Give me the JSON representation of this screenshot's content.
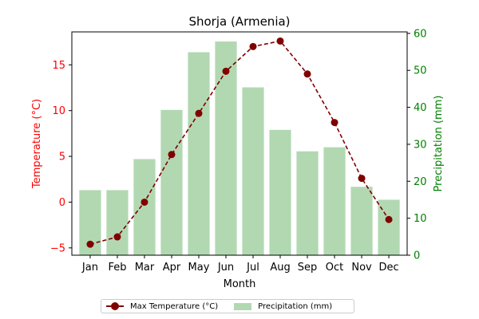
{
  "chart_data": {
    "type": "bar+line",
    "title": "Shorja (Armenia)",
    "xlabel": "Month",
    "ylabel_left": "Temperature (°C)",
    "ylabel_right": "Precipitation (mm)",
    "categories": [
      "Jan",
      "Feb",
      "Mar",
      "Apr",
      "May",
      "Jun",
      "Jul",
      "Aug",
      "Sep",
      "Oct",
      "Nov",
      "Dec"
    ],
    "temperature": {
      "name": "Max Temperature (°C)",
      "values": [
        -4.6,
        -3.8,
        0.0,
        5.2,
        9.7,
        14.3,
        17.0,
        17.6,
        14.0,
        8.7,
        2.6,
        -1.9
      ],
      "color": "#800000"
    },
    "precipitation": {
      "name": "Precipitation (mm)",
      "values": [
        17.6,
        17.6,
        26.0,
        39.3,
        54.9,
        57.8,
        45.4,
        33.9,
        28.1,
        29.2,
        18.5,
        15.0
      ],
      "color": "#b2d8b2"
    },
    "y_left_ticks": [
      -5,
      0,
      5,
      10,
      15
    ],
    "y_left_range": [
      -5.8,
      18.6
    ],
    "y_right_ticks": [
      0,
      10,
      20,
      30,
      40,
      50,
      60
    ],
    "y_right_range": [
      0,
      60.4
    ],
    "left_axis_color": "#ff0000",
    "right_axis_color": "#008000",
    "legend_position": "bottom-center",
    "grid": false
  }
}
